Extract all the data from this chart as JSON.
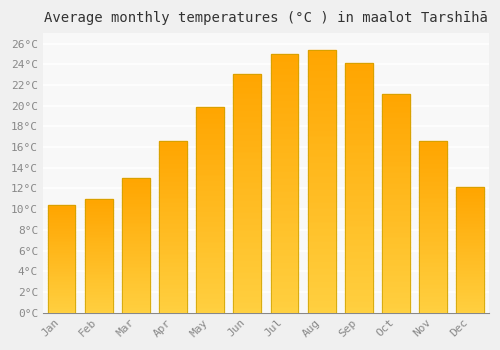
{
  "months": [
    "Jan",
    "Feb",
    "Mar",
    "Apr",
    "May",
    "Jun",
    "Jul",
    "Aug",
    "Sep",
    "Oct",
    "Nov",
    "Dec"
  ],
  "values": [
    10.4,
    11.0,
    13.0,
    16.6,
    19.9,
    23.1,
    25.0,
    25.4,
    24.1,
    21.1,
    16.6,
    12.1
  ],
  "bar_color_main": "#FFA500",
  "bar_color_light": "#FFD040",
  "bar_edge_color": "#C8A000",
  "title": "Average monthly temperatures (°C ) in maalot Tarshīhā",
  "ylim": [
    0,
    27
  ],
  "ytick_step": 2,
  "background_color": "#f0f0f0",
  "plot_bg_color": "#f8f8f8",
  "grid_color": "#ffffff",
  "title_fontsize": 10,
  "tick_fontsize": 8,
  "font_family": "monospace"
}
